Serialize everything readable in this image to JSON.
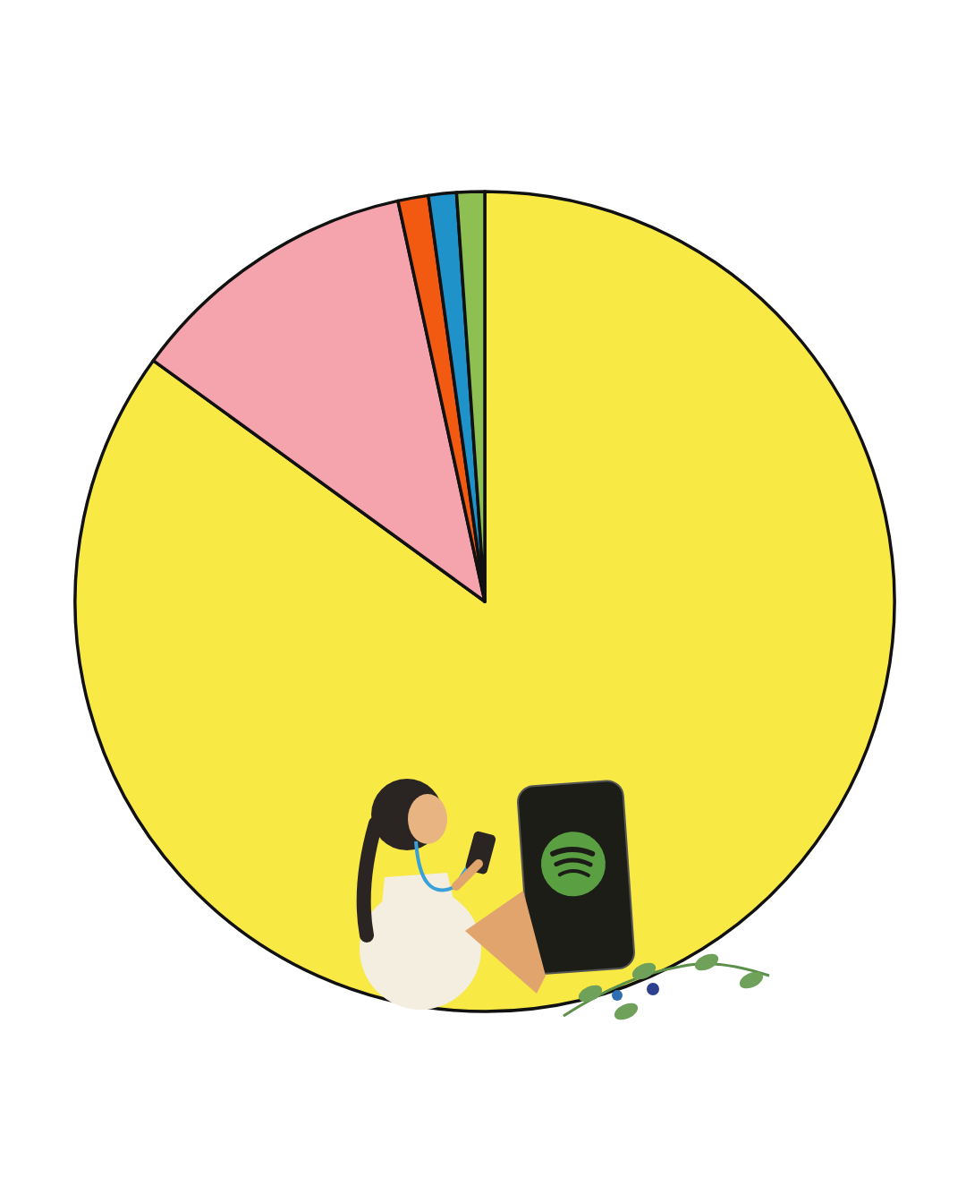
{
  "chart_data": {
    "type": "pie",
    "values": [
      85,
      11.6,
      1.2,
      1.1,
      1.1
    ],
    "colors": [
      "#f8e944",
      "#f5a4ad",
      "#f25a12",
      "#1f93c9",
      "#8dbf52"
    ]
  }
}
